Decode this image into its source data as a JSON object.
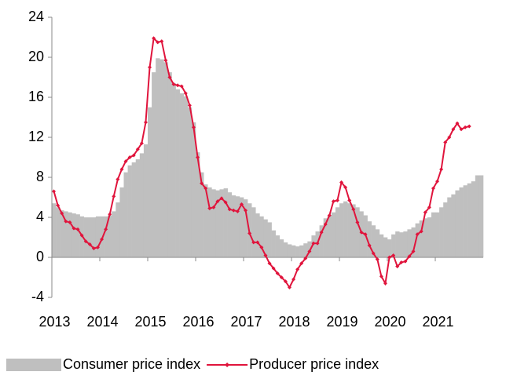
{
  "chart_data": {
    "type": "line",
    "categories": [
      "2013",
      null,
      null,
      null,
      null,
      null,
      null,
      null,
      null,
      null,
      null,
      null,
      "2014",
      null,
      null,
      null,
      null,
      null,
      null,
      null,
      null,
      null,
      null,
      null,
      "2015",
      null,
      null,
      null,
      null,
      null,
      null,
      null,
      null,
      null,
      null,
      null,
      "2016",
      null,
      null,
      null,
      null,
      null,
      null,
      null,
      null,
      null,
      null,
      null,
      "2017",
      null,
      null,
      null,
      null,
      null,
      null,
      null,
      null,
      null,
      null,
      null,
      "2018",
      null,
      null,
      null,
      null,
      null,
      null,
      null,
      null,
      null,
      null,
      null,
      "2019",
      null,
      null,
      null,
      null,
      null,
      null,
      null,
      null,
      null,
      null,
      null,
      "2020",
      null,
      null,
      null,
      null,
      null,
      null,
      null,
      null,
      null,
      null,
      null,
      "2021",
      null,
      null,
      null,
      null,
      null,
      null,
      null,
      null,
      null,
      null,
      null
    ],
    "series": [
      {
        "name": "Consumer price index",
        "color": "#bfbfbf",
        "style": "area",
        "values": [
          5.4,
          5.0,
          4.7,
          4.6,
          4.5,
          4.4,
          4.3,
          4.1,
          4.0,
          4.0,
          4.0,
          4.1,
          4.1,
          4.1,
          4.2,
          4.6,
          5.5,
          7.0,
          8.5,
          9.2,
          9.5,
          9.8,
          10.4,
          11.3,
          15.0,
          18.5,
          19.9,
          19.8,
          19.5,
          18.5,
          17.4,
          16.8,
          16.4,
          16.1,
          15.0,
          13.5,
          10.5,
          8.5,
          7.3,
          7.0,
          6.8,
          6.7,
          6.8,
          6.9,
          6.5,
          6.2,
          6.1,
          6.0,
          5.8,
          5.4,
          5.0,
          4.4,
          4.1,
          3.8,
          3.5,
          2.7,
          2.2,
          1.8,
          1.5,
          1.3,
          1.2,
          1.1,
          1.2,
          1.4,
          1.6,
          2.2,
          2.6,
          3.2,
          3.9,
          4.2,
          4.5,
          5.0,
          5.4,
          5.6,
          5.4,
          5.3,
          5.0,
          4.6,
          4.2,
          3.6,
          3.2,
          2.8,
          2.3,
          2.0,
          1.8,
          2.3,
          2.6,
          2.5,
          2.6,
          2.8,
          3.0,
          3.4,
          3.7,
          3.9,
          4.0,
          4.5,
          4.5,
          5.0,
          5.5,
          6.0,
          6.3,
          6.7,
          7.0,
          7.2,
          7.4,
          7.6,
          8.2,
          8.2
        ]
      },
      {
        "name": "Producer price index",
        "color": "#e0143c",
        "style": "line",
        "values": [
          6.6,
          5.2,
          4.4,
          3.6,
          3.5,
          2.9,
          2.8,
          2.2,
          1.6,
          1.3,
          0.9,
          1.0,
          1.8,
          2.8,
          4.3,
          6.1,
          7.8,
          8.8,
          9.6,
          10.0,
          10.2,
          10.8,
          11.4,
          13.5,
          19.0,
          21.9,
          21.5,
          21.6,
          19.7,
          18.0,
          17.3,
          17.2,
          17.1,
          16.4,
          15.2,
          13.0,
          10.0,
          7.4,
          6.9,
          4.9,
          5.0,
          5.6,
          5.9,
          5.5,
          4.8,
          4.7,
          4.6,
          5.3,
          4.7,
          2.4,
          1.5,
          1.5,
          1.0,
          0.2,
          -0.6,
          -1.1,
          -1.6,
          -2.0,
          -2.4,
          -3.0,
          -2.2,
          -1.2,
          -0.6,
          -0.1,
          0.6,
          1.4,
          1.4,
          2.5,
          3.3,
          4.2,
          5.6,
          5.7,
          7.5,
          7.0,
          5.7,
          4.8,
          3.5,
          2.5,
          2.3,
          1.2,
          0.4,
          -0.2,
          -1.9,
          -2.6,
          0.0,
          0.2,
          -0.9,
          -0.5,
          -0.4,
          0.1,
          0.6,
          2.3,
          2.6,
          4.5,
          5.0,
          6.9,
          7.6,
          8.8,
          11.5,
          12.0,
          12.8,
          13.4,
          12.8,
          13.0,
          13.1,
          null,
          null,
          null
        ]
      }
    ],
    "ylim": [
      -4,
      24
    ],
    "yticks": [
      -4,
      0,
      4,
      8,
      12,
      16,
      20,
      24
    ],
    "grid": false,
    "legend": "bottom"
  }
}
